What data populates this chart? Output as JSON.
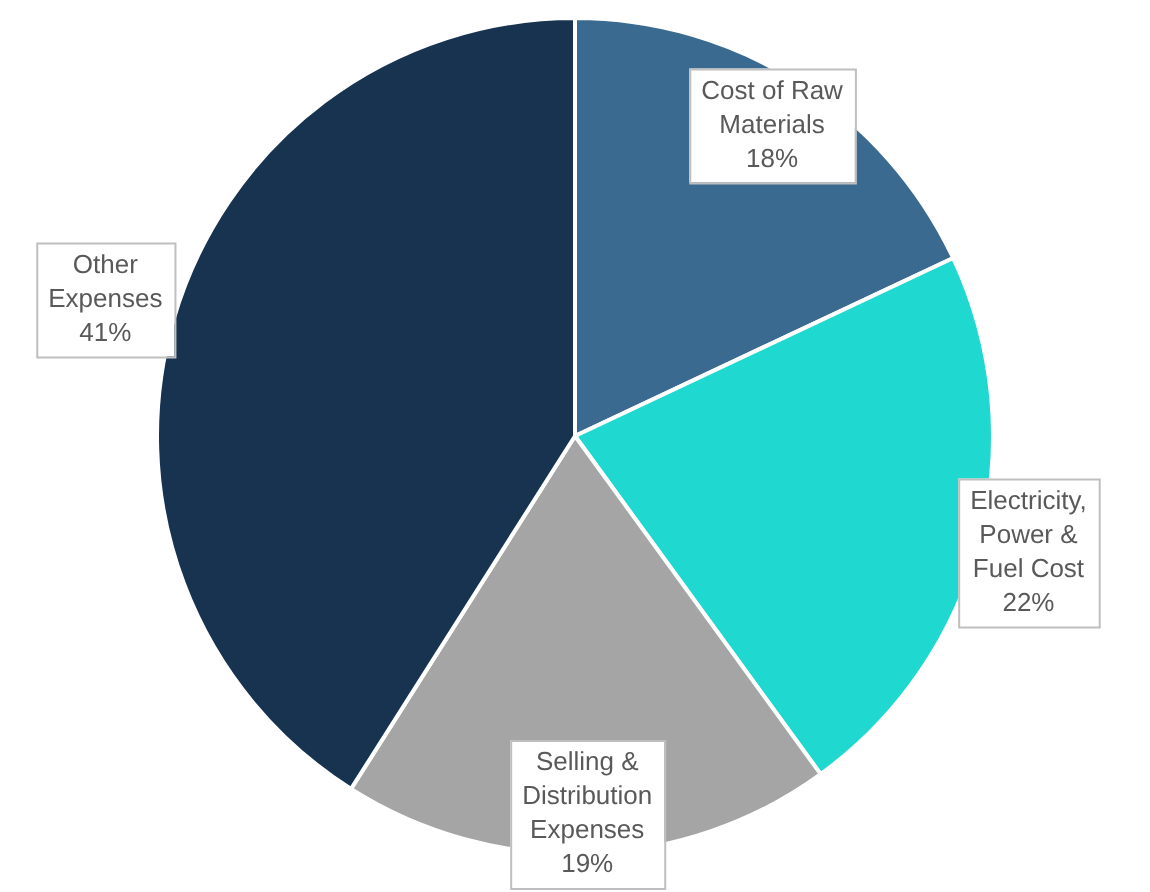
{
  "chart_data": {
    "type": "pie",
    "categories": [
      "Cost of Raw Materials",
      "Electricity, Power & Fuel Cost",
      "Selling & Distribution Expenses",
      "Other Expenses"
    ],
    "values": [
      18,
      22,
      19,
      41
    ],
    "value_labels": [
      "18%",
      "22%",
      "19%",
      "41%"
    ],
    "colors": [
      "#3b6a91",
      "#1fd8cf",
      "#a5a5a5",
      "#173350"
    ],
    "legend": false
  }
}
